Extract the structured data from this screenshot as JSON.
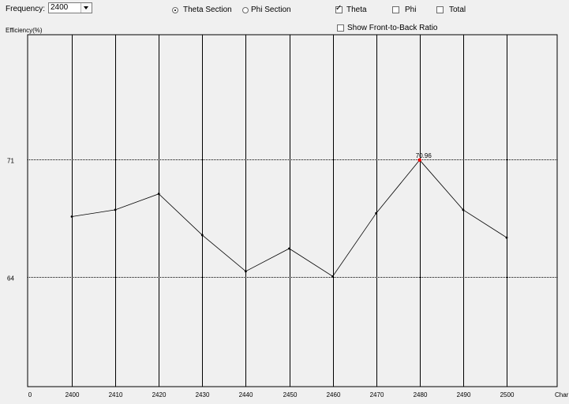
{
  "toolbar": {
    "frequency_label": "Frequency:",
    "frequency_value": "2400",
    "section_options": [
      {
        "label": "Theta Section",
        "selected": true
      },
      {
        "label": "Phi Section",
        "selected": false
      }
    ],
    "component_options": [
      {
        "label": "Theta",
        "checked": true
      },
      {
        "label": "Phi",
        "checked": false
      },
      {
        "label": "Total",
        "checked": false
      }
    ],
    "front_back_label": "Show Front-to-Back Ratio",
    "front_back_checked": false
  },
  "chart_data": {
    "type": "line",
    "ylabel": "Efficiency(%)",
    "xlabel": "Char",
    "x_origin_label": "0",
    "x": [
      2400,
      2410,
      2420,
      2430,
      2440,
      2450,
      2460,
      2470,
      2480,
      2490,
      2500
    ],
    "y": [
      67.6,
      68.0,
      68.95,
      66.5,
      64.35,
      65.7,
      64.05,
      67.8,
      70.96,
      68.0,
      66.35
    ],
    "y_gridlines": [
      71,
      64
    ],
    "ylim": [
      57.5,
      78.4
    ],
    "peak_label": "70.96",
    "peak_color": "#ff0000",
    "line_color": "#000000",
    "grid": true
  }
}
